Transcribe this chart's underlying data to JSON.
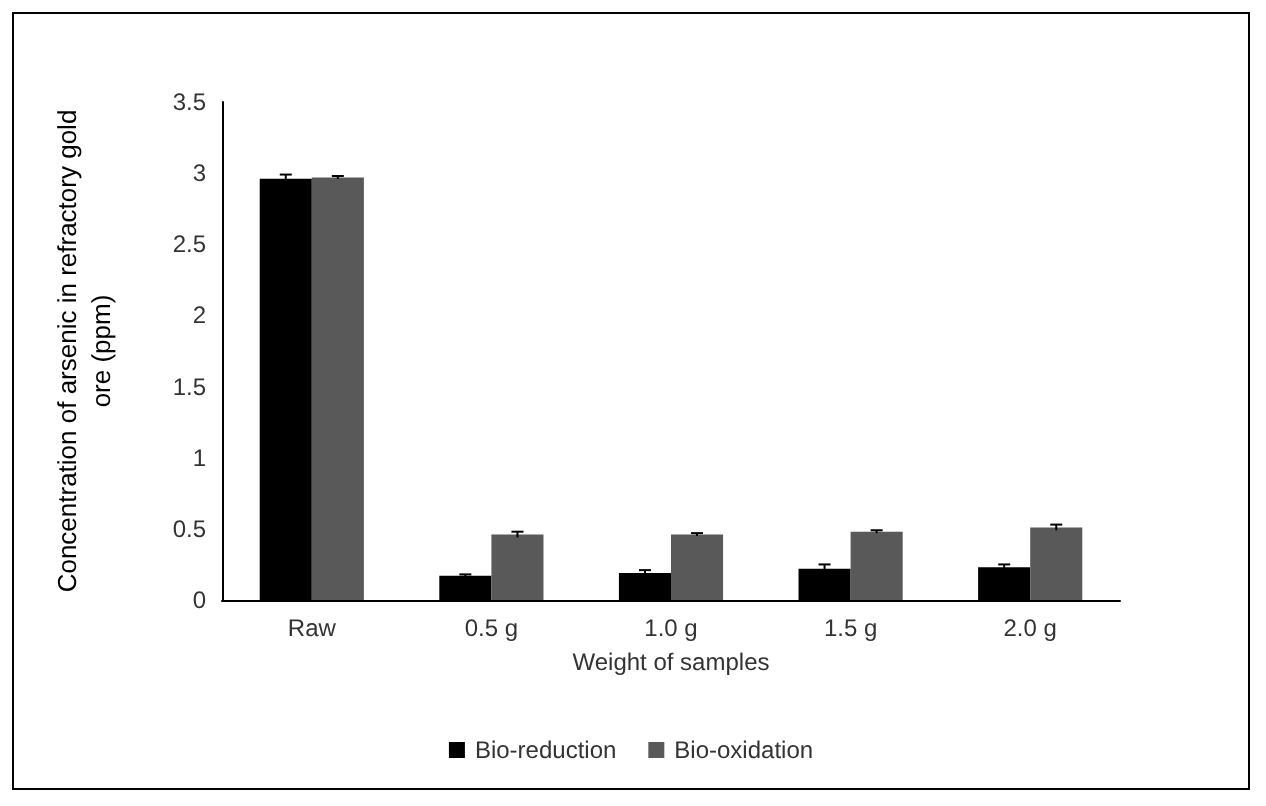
{
  "chart_data": {
    "type": "bar",
    "xlabel": "Weight of samples",
    "ylabel": "Concentration of arsenic in refractory gold\nore (ppm)",
    "categories": [
      "Raw",
      "0.5 g",
      "1.0 g",
      "1.5 g",
      "2.0 g"
    ],
    "series": [
      {
        "name": "Bio-reduction",
        "color": "#000000",
        "values": [
          2.96,
          0.17,
          0.19,
          0.22,
          0.23
        ],
        "errors": [
          0.03,
          0.01,
          0.02,
          0.03,
          0.02
        ]
      },
      {
        "name": "Bio-oxidation",
        "color": "#595959",
        "values": [
          2.97,
          0.46,
          0.46,
          0.48,
          0.51
        ],
        "errors": [
          0.01,
          0.02,
          0.01,
          0.01,
          0.02
        ]
      }
    ],
    "ylim": [
      0,
      3.5
    ],
    "yticks": [
      0,
      0.5,
      1,
      1.5,
      2,
      2.5,
      3,
      3.5
    ],
    "grid": false,
    "legend": "bottom"
  }
}
